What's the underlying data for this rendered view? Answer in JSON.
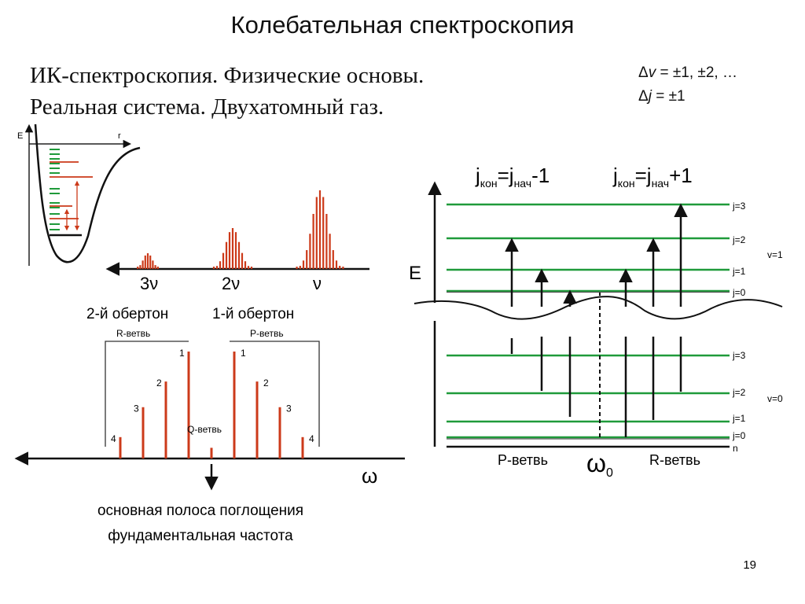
{
  "title": "Колебательная спектроскопия",
  "subtitle_line1": "ИК-спектроскопия. Физические основы.",
  "subtitle_line2": "Реальная система. Двухатомный газ.",
  "selection_rules": {
    "dv_symbol": "Δ",
    "dv_var": "v",
    "dv_rest": " = ±1, ±2, …",
    "dj_symbol": "Δ",
    "dj_var": "j",
    "dj_rest": " = ±1"
  },
  "potential": {
    "e_label": "E",
    "r_label": "r"
  },
  "overtone_bands": {
    "labels": [
      "3ν",
      "2ν",
      "ν"
    ]
  },
  "band_names": {
    "second_overtone": "2-й обертон",
    "first_overtone": "1-й обертон"
  },
  "band_spectrum": {
    "r_branch": "R-ветвь",
    "p_branch": "P-ветвь",
    "q_branch": "Q-ветвь",
    "omega": "ω",
    "r_lines": [
      {
        "j": "1",
        "height": 1.0
      },
      {
        "j": "2",
        "height": 0.72
      },
      {
        "j": "3",
        "height": 0.48
      },
      {
        "j": "4",
        "height": 0.2
      }
    ],
    "p_lines": [
      {
        "j": "1",
        "height": 1.0
      },
      {
        "j": "2",
        "height": 0.72
      },
      {
        "j": "3",
        "height": 0.48
      },
      {
        "j": "4",
        "height": 0.2
      }
    ],
    "q_height": 0.1
  },
  "caption_line1": "основная полоса поглощения",
  "caption_line2": "фундаментальная частота",
  "energy_diagram": {
    "header_p": {
      "j": "j",
      "sub1": "кон",
      "eq": "=j",
      "sub2": "нач",
      "tail": "-1"
    },
    "header_r": {
      "j": "j",
      "sub1": "кон",
      "eq": "=j",
      "sub2": "нач",
      "tail": "+1"
    },
    "e_label": "E",
    "upper_levels": [
      "j=3",
      "j=2",
      "j=1",
      "j=0"
    ],
    "upper_state": "v=1",
    "lower_levels": [
      "j=3",
      "j=2",
      "j=1",
      "j=0",
      "n"
    ],
    "lower_state": "v=0",
    "p_branch": "P-ветвь",
    "omega0": "ω",
    "omega0_sub": "0",
    "r_branch": "R-ветвь"
  },
  "colors": {
    "level": "#1f9a3a",
    "line": "#cc3a1a",
    "arrow": "#111111"
  },
  "page_number": "19"
}
